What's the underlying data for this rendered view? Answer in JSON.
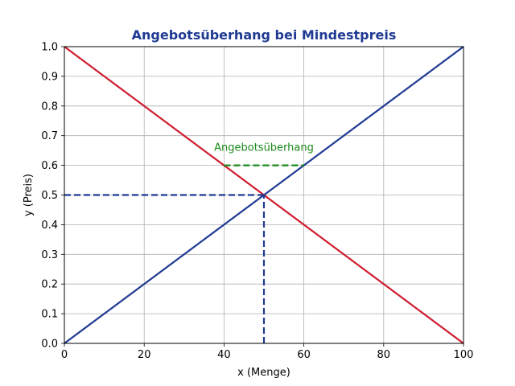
{
  "chart_data": {
    "type": "line",
    "title": "Angebotsüberhang bei Mindestpreis",
    "xlabel": "x (Menge)",
    "ylabel": "y (Preis)",
    "xlim": [
      0,
      100
    ],
    "ylim": [
      0,
      1.0
    ],
    "xticks": [
      "0",
      "20",
      "40",
      "60",
      "80",
      "100"
    ],
    "yticks": [
      "0.0",
      "0.1",
      "0.2",
      "0.3",
      "0.4",
      "0.5",
      "0.6",
      "0.7",
      "0.8",
      "0.9",
      "1.0"
    ],
    "grid": true,
    "series": [
      {
        "color": "#d01c2e",
        "style": "solid",
        "x": [
          0,
          100
        ],
        "y": [
          1.0,
          0.0
        ]
      },
      {
        "color": "#1f3a93",
        "style": "solid",
        "x": [
          0,
          100
        ],
        "y": [
          0.0,
          1.0
        ]
      },
      {
        "color": "#1f3a93",
        "style": "dashed",
        "x": [
          0,
          50
        ],
        "y": [
          0.5,
          0.5
        ]
      },
      {
        "color": "#1f3a93",
        "style": "dashed",
        "x": [
          50,
          50
        ],
        "y": [
          0.0,
          0.5
        ]
      },
      {
        "color": "#1a8a1a",
        "style": "dashed",
        "x": [
          40,
          60
        ],
        "y": [
          0.6,
          0.6
        ]
      }
    ],
    "annotations": [
      {
        "text": "Angebotsüberhang",
        "x": 50,
        "y": 0.6,
        "color": "#1a8a1a"
      }
    ],
    "colors": {
      "title": "#1f3a93"
    }
  }
}
